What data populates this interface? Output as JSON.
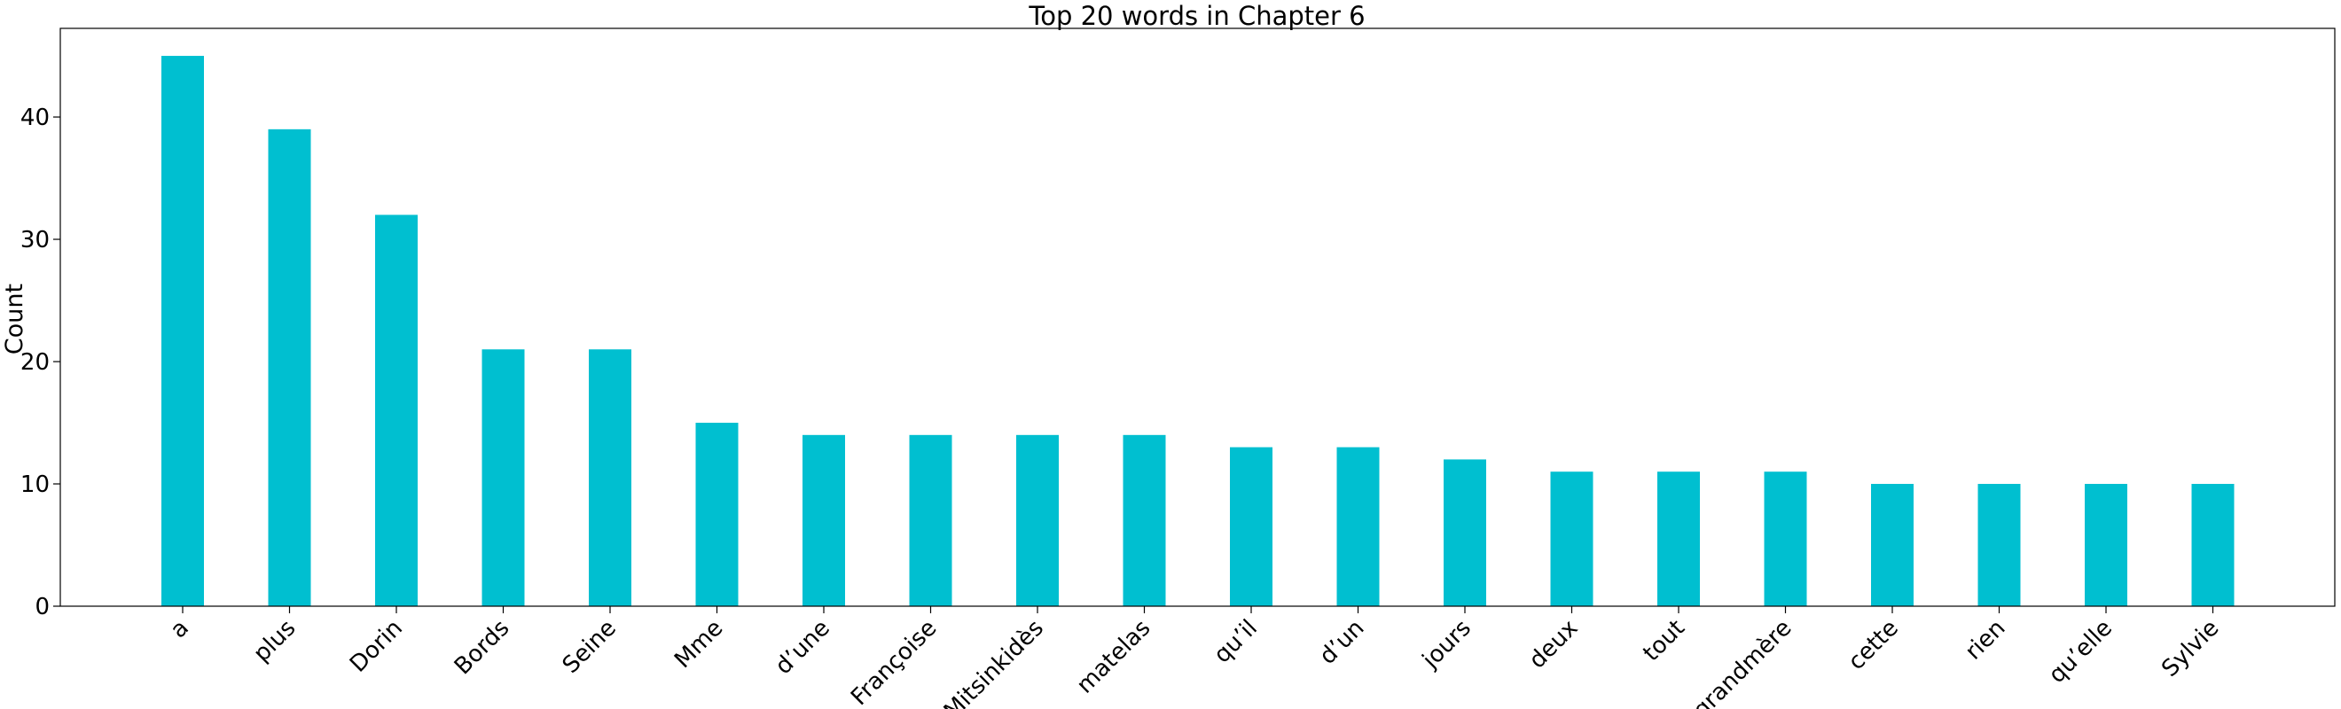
{
  "chart_data": {
    "type": "bar",
    "title": "Top 20 words in Chapter 6",
    "xlabel": "",
    "ylabel": "Count",
    "categories": [
      "a",
      "plus",
      "Dorin",
      "Bords",
      "Seine",
      "Mme",
      "d’une",
      "Françoise",
      "Mitsinkidès",
      "matelas",
      "qu’il",
      "d’un",
      "jours",
      "deux",
      "tout",
      "grandmère",
      "cette",
      "rien",
      "qu’elle",
      "Sylvie"
    ],
    "values": [
      45,
      39,
      32,
      21,
      21,
      15,
      14,
      14,
      14,
      14,
      13,
      13,
      12,
      11,
      11,
      11,
      10,
      10,
      10,
      10
    ],
    "ylim": [
      0,
      47.25
    ],
    "yticks": [
      0,
      10,
      20,
      30,
      40
    ],
    "bar_color": "#00bfd0",
    "grid": false,
    "legend": "none"
  }
}
